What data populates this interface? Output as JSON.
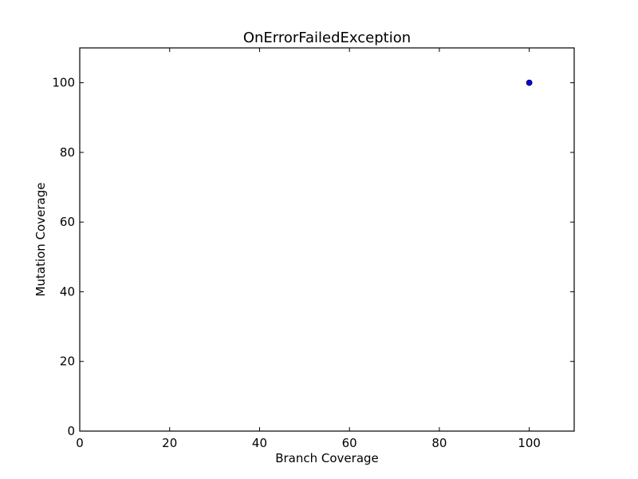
{
  "chart_data": {
    "type": "scatter",
    "title": "OnErrorFailedException",
    "xlabel": "Branch Coverage",
    "ylabel": "Mutation Coverage",
    "xlim": [
      0,
      110
    ],
    "ylim": [
      0,
      110
    ],
    "xticks": [
      0,
      20,
      40,
      60,
      80,
      100
    ],
    "yticks": [
      0,
      20,
      40,
      60,
      80,
      100
    ],
    "grid": false,
    "points": [
      {
        "x": 100,
        "y": 100
      }
    ],
    "marker_color": "#0000ff"
  }
}
